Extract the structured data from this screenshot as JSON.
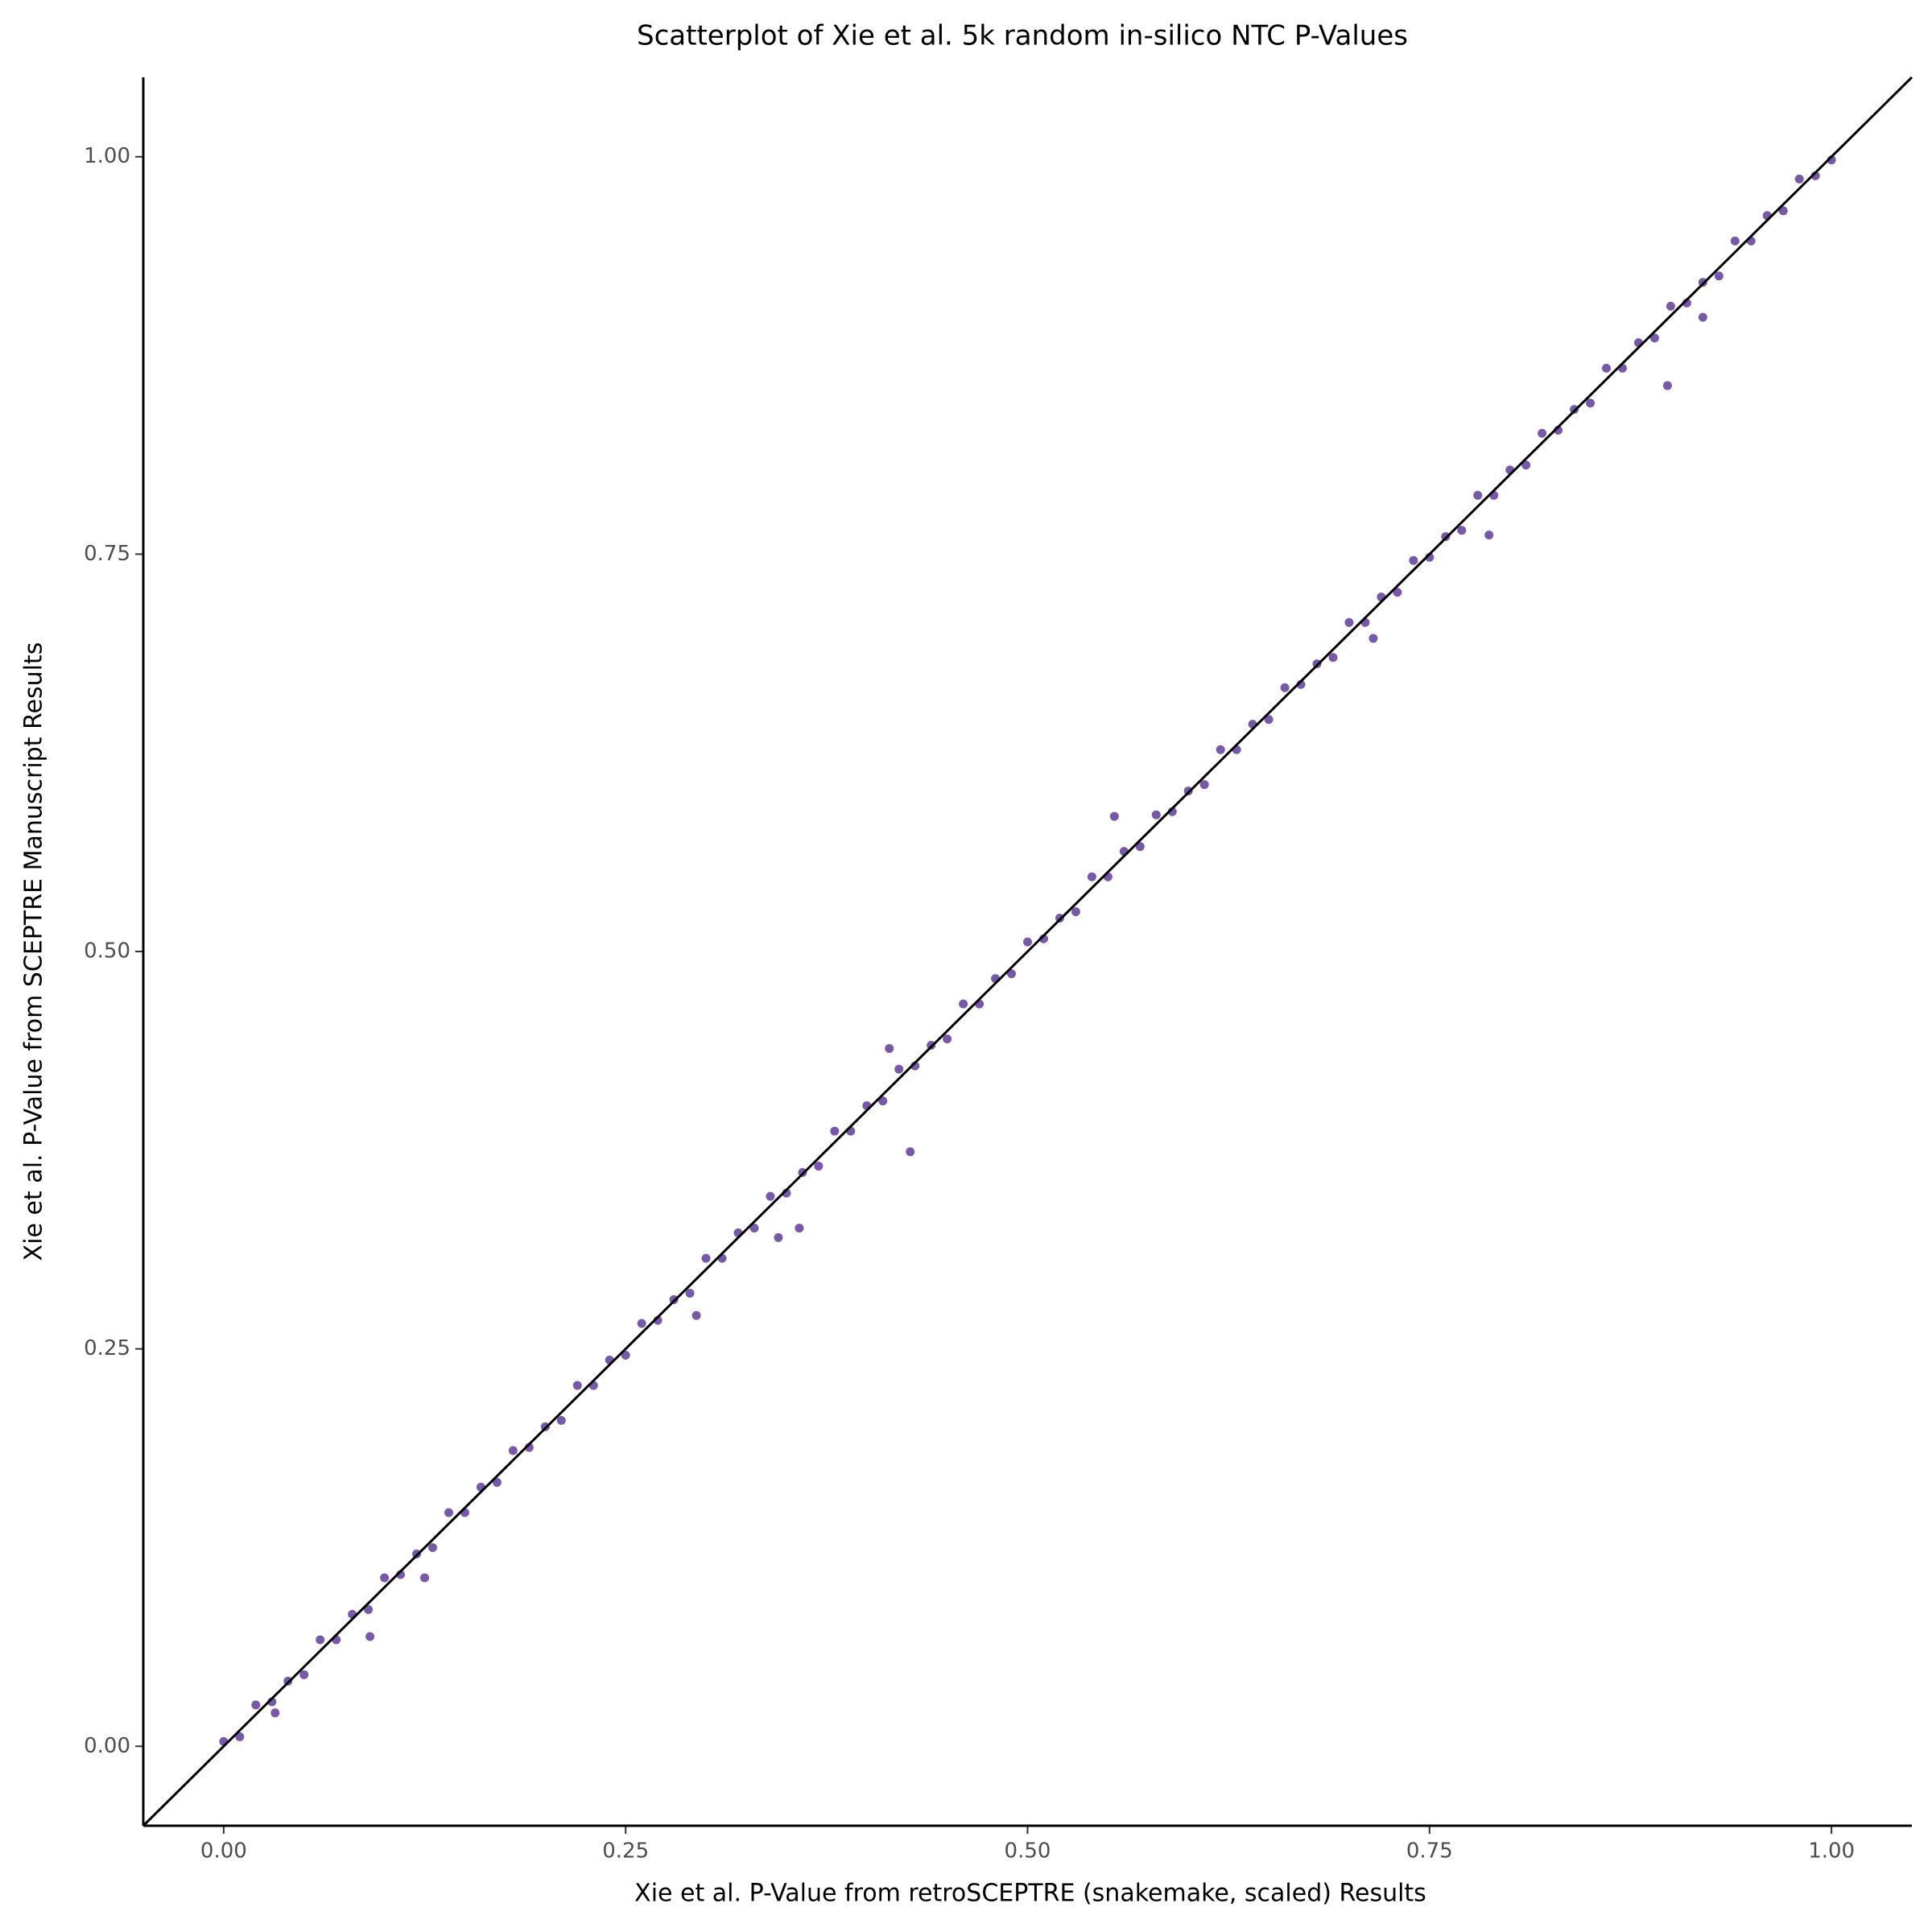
{
  "chart_data": {
    "type": "scatter",
    "title": "Scatterplot of Xie et al. 5k random in-silico NTC P-Values",
    "x_label": "Xie et al. P-Value from retroSCEPTRE (snakemake, scaled) Results",
    "y_label": "Xie et al. P-Value from SCEPTRE Manuscript Results",
    "color": "#5e3c99",
    "identity_line": true,
    "xlim": [
      -0.05,
      1.05
    ],
    "ylim": [
      -0.05,
      1.05
    ],
    "xticks": [
      {
        "value": 0,
        "label": "0.00"
      },
      0.25,
      {
        "value": 0.5,
        "label": "0.50"
      },
      0.75,
      {
        "value": 1,
        "label": "1.00"
      }
    ],
    "yticks": [
      {
        "value": 0,
        "label": "0.00"
      },
      0.25,
      {
        "value": 0.5,
        "label": "0.50"
      },
      0.75,
      {
        "value": 1,
        "label": "1.00"
      }
    ],
    "x": [
      0,
      0.01,
      0.02,
      0.03,
      0.04,
      0.05,
      0.06,
      0.07,
      0.08,
      0.09,
      0.1,
      0.11,
      0.12,
      0.13,
      0.14,
      0.15,
      0.16,
      0.17,
      0.18,
      0.19,
      0.2,
      0.21,
      0.22,
      0.23,
      0.24,
      0.25,
      0.26,
      0.27,
      0.28,
      0.29,
      0.3,
      0.31,
      0.32,
      0.33,
      0.34,
      0.35,
      0.36,
      0.37,
      0.38,
      0.39,
      0.4,
      0.41,
      0.42,
      0.43,
      0.44,
      0.45,
      0.46,
      0.47,
      0.48,
      0.49,
      0.5,
      0.51,
      0.52,
      0.53,
      0.54,
      0.55,
      0.56,
      0.57,
      0.58,
      0.59,
      0.6,
      0.61,
      0.62,
      0.63,
      0.64,
      0.65,
      0.66,
      0.67,
      0.68,
      0.69,
      0.7,
      0.71,
      0.72,
      0.73,
      0.74,
      0.75,
      0.76,
      0.77,
      0.78,
      0.79,
      0.8,
      0.81,
      0.82,
      0.83,
      0.84,
      0.85,
      0.86,
      0.87,
      0.88,
      0.89,
      0.9,
      0.91,
      0.92,
      0.93,
      0.94,
      0.95,
      0.96,
      0.97,
      0.98,
      0.99,
      1,
      0.898,
      0.787,
      0.92,
      0.427,
      0.358,
      0.091,
      0.125,
      0.554,
      0.414,
      0.294,
      0.345,
      0.715,
      0.032
    ],
    "values": [
      0.003,
      0.006,
      0.026,
      0.028,
      0.041,
      0.045,
      0.067,
      0.067,
      0.083,
      0.086,
      0.106,
      0.108,
      0.121,
      0.125,
      0.147,
      0.147,
      0.163,
      0.166,
      0.186,
      0.188,
      0.201,
      0.205,
      0.227,
      0.227,
      0.243,
      0.246,
      0.266,
      0.268,
      0.281,
      0.285,
      0.307,
      0.307,
      0.323,
      0.326,
      0.346,
      0.348,
      0.361,
      0.365,
      0.387,
      0.387,
      0.403,
      0.406,
      0.426,
      0.428,
      0.441,
      0.445,
      0.467,
      0.467,
      0.483,
      0.486,
      0.506,
      0.508,
      0.521,
      0.525,
      0.547,
      0.547,
      0.563,
      0.566,
      0.586,
      0.588,
      0.601,
      0.605,
      0.627,
      0.627,
      0.643,
      0.646,
      0.666,
      0.668,
      0.681,
      0.685,
      0.707,
      0.707,
      0.723,
      0.726,
      0.746,
      0.748,
      0.761,
      0.765,
      0.787,
      0.787,
      0.803,
      0.806,
      0.826,
      0.828,
      0.841,
      0.845,
      0.867,
      0.867,
      0.883,
      0.886,
      0.906,
      0.908,
      0.921,
      0.925,
      0.947,
      0.947,
      0.963,
      0.966,
      0.986,
      0.988,
      0.998,
      0.856,
      0.762,
      0.899,
      0.374,
      0.326,
      0.069,
      0.106,
      0.585,
      0.439,
      0.271,
      0.32,
      0.697,
      0.021
    ]
  }
}
